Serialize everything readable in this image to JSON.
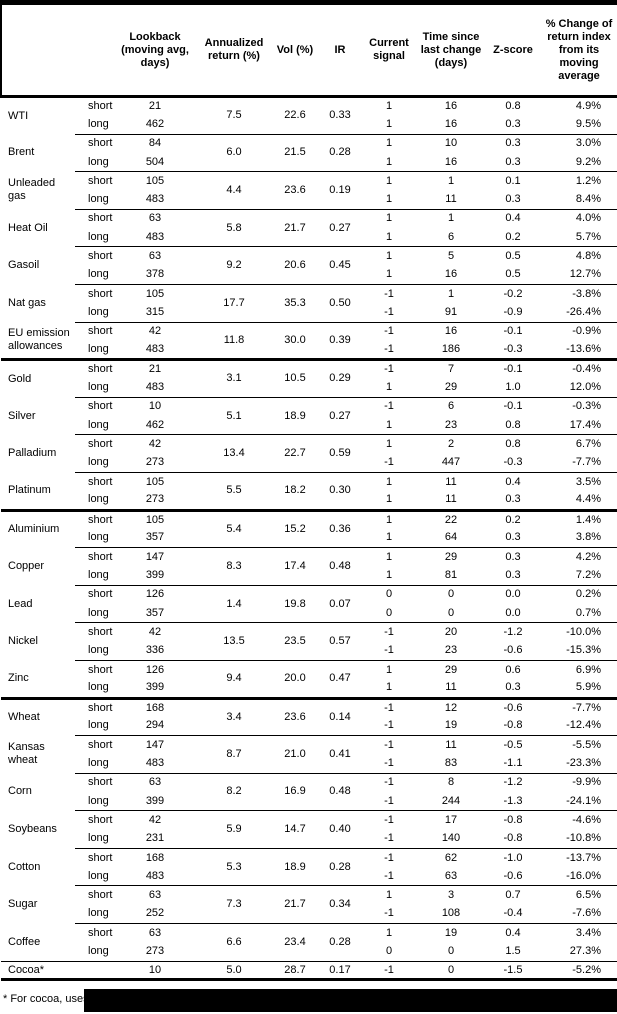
{
  "header": {
    "col_name": "",
    "col_horizon": "",
    "col_lookback": "Lookback (moving avg, days)",
    "col_annualized": "Annualized return (%)",
    "col_vol": "Vol (%)",
    "col_ir": "IR",
    "col_signal": "Current signal",
    "col_time": "Time since last change (days)",
    "col_zscore": "Z-score",
    "col_pct_change": "% Change of return index from its moving average"
  },
  "colors": {
    "border": "#000000",
    "text": "#000000",
    "background": "#ffffff",
    "redaction": "#000000"
  },
  "sections": [
    {
      "commodities": [
        {
          "name": "WTI",
          "annualized": "7.5",
          "vol": "22.6",
          "ir": "0.33",
          "rows": [
            {
              "horizon": "short",
              "lookback": "21",
              "signal": "1",
              "time": "16",
              "z": "0.8",
              "pct": "4.9%"
            },
            {
              "horizon": "long",
              "lookback": "462",
              "signal": "1",
              "time": "16",
              "z": "0.3",
              "pct": "9.5%"
            }
          ]
        },
        {
          "name": "Brent",
          "annualized": "6.0",
          "vol": "21.5",
          "ir": "0.28",
          "rows": [
            {
              "horizon": "short",
              "lookback": "84",
              "signal": "1",
              "time": "10",
              "z": "0.3",
              "pct": "3.0%"
            },
            {
              "horizon": "long",
              "lookback": "504",
              "signal": "1",
              "time": "16",
              "z": "0.3",
              "pct": "9.2%"
            }
          ]
        },
        {
          "name": "Unleaded gas",
          "annualized": "4.4",
          "vol": "23.6",
          "ir": "0.19",
          "rows": [
            {
              "horizon": "short",
              "lookback": "105",
              "signal": "1",
              "time": "1",
              "z": "0.1",
              "pct": "1.2%"
            },
            {
              "horizon": "long",
              "lookback": "483",
              "signal": "1",
              "time": "11",
              "z": "0.3",
              "pct": "8.4%"
            }
          ]
        },
        {
          "name": "Heat Oil",
          "annualized": "5.8",
          "vol": "21.7",
          "ir": "0.27",
          "rows": [
            {
              "horizon": "short",
              "lookback": "63",
              "signal": "1",
              "time": "1",
              "z": "0.4",
              "pct": "4.0%"
            },
            {
              "horizon": "long",
              "lookback": "483",
              "signal": "1",
              "time": "6",
              "z": "0.2",
              "pct": "5.7%"
            }
          ]
        },
        {
          "name": "Gasoil",
          "annualized": "9.2",
          "vol": "20.6",
          "ir": "0.45",
          "rows": [
            {
              "horizon": "short",
              "lookback": "63",
              "signal": "1",
              "time": "5",
              "z": "0.5",
              "pct": "4.8%"
            },
            {
              "horizon": "long",
              "lookback": "378",
              "signal": "1",
              "time": "16",
              "z": "0.5",
              "pct": "12.7%"
            }
          ]
        },
        {
          "name": "Nat gas",
          "annualized": "17.7",
          "vol": "35.3",
          "ir": "0.50",
          "rows": [
            {
              "horizon": "short",
              "lookback": "105",
              "signal": "-1",
              "time": "1",
              "z": "-0.2",
              "pct": "-3.8%"
            },
            {
              "horizon": "long",
              "lookback": "315",
              "signal": "-1",
              "time": "91",
              "z": "-0.9",
              "pct": "-26.4%"
            }
          ]
        },
        {
          "name": "EU emission allowances",
          "annualized": "11.8",
          "vol": "30.0",
          "ir": "0.39",
          "rows": [
            {
              "horizon": "short",
              "lookback": "42",
              "signal": "-1",
              "time": "16",
              "z": "-0.1",
              "pct": "-0.9%"
            },
            {
              "horizon": "long",
              "lookback": "483",
              "signal": "-1",
              "time": "186",
              "z": "-0.3",
              "pct": "-13.6%"
            }
          ]
        }
      ]
    },
    {
      "commodities": [
        {
          "name": "Gold",
          "annualized": "3.1",
          "vol": "10.5",
          "ir": "0.29",
          "rows": [
            {
              "horizon": "short",
              "lookback": "21",
              "signal": "-1",
              "time": "7",
              "z": "-0.1",
              "pct": "-0.4%"
            },
            {
              "horizon": "long",
              "lookback": "483",
              "signal": "1",
              "time": "29",
              "z": "1.0",
              "pct": "12.0%"
            }
          ]
        },
        {
          "name": "Silver",
          "annualized": "5.1",
          "vol": "18.9",
          "ir": "0.27",
          "rows": [
            {
              "horizon": "short",
              "lookback": "10",
              "signal": "-1",
              "time": "6",
              "z": "-0.1",
              "pct": "-0.3%"
            },
            {
              "horizon": "long",
              "lookback": "462",
              "signal": "1",
              "time": "23",
              "z": "0.8",
              "pct": "17.4%"
            }
          ]
        },
        {
          "name": "Palladium",
          "annualized": "13.4",
          "vol": "22.7",
          "ir": "0.59",
          "rows": [
            {
              "horizon": "short",
              "lookback": "42",
              "signal": "1",
              "time": "2",
              "z": "0.8",
              "pct": "6.7%"
            },
            {
              "horizon": "long",
              "lookback": "273",
              "signal": "-1",
              "time": "447",
              "z": "-0.3",
              "pct": "-7.7%"
            }
          ]
        },
        {
          "name": "Platinum",
          "annualized": "5.5",
          "vol": "18.2",
          "ir": "0.30",
          "rows": [
            {
              "horizon": "short",
              "lookback": "105",
              "signal": "1",
              "time": "11",
              "z": "0.4",
              "pct": "3.5%"
            },
            {
              "horizon": "long",
              "lookback": "273",
              "signal": "1",
              "time": "11",
              "z": "0.3",
              "pct": "4.4%"
            }
          ]
        }
      ]
    },
    {
      "commodities": [
        {
          "name": "Aluminium",
          "annualized": "5.4",
          "vol": "15.2",
          "ir": "0.36",
          "rows": [
            {
              "horizon": "short",
              "lookback": "105",
              "signal": "1",
              "time": "22",
              "z": "0.2",
              "pct": "1.4%"
            },
            {
              "horizon": "long",
              "lookback": "357",
              "signal": "1",
              "time": "64",
              "z": "0.3",
              "pct": "3.8%"
            }
          ]
        },
        {
          "name": "Copper",
          "annualized": "8.3",
          "vol": "17.4",
          "ir": "0.48",
          "rows": [
            {
              "horizon": "short",
              "lookback": "147",
              "signal": "1",
              "time": "29",
              "z": "0.3",
              "pct": "4.2%"
            },
            {
              "horizon": "long",
              "lookback": "399",
              "signal": "1",
              "time": "81",
              "z": "0.3",
              "pct": "7.2%"
            }
          ]
        },
        {
          "name": "Lead",
          "annualized": "1.4",
          "vol": "19.8",
          "ir": "0.07",
          "rows": [
            {
              "horizon": "short",
              "lookback": "126",
              "signal": "0",
              "time": "0",
              "z": "0.0",
              "pct": "0.2%"
            },
            {
              "horizon": "long",
              "lookback": "357",
              "signal": "0",
              "time": "0",
              "z": "0.0",
              "pct": "0.7%"
            }
          ]
        },
        {
          "name": "Nickel",
          "annualized": "13.5",
          "vol": "23.5",
          "ir": "0.57",
          "rows": [
            {
              "horizon": "short",
              "lookback": "42",
              "signal": "-1",
              "time": "20",
              "z": "-1.2",
              "pct": "-10.0%"
            },
            {
              "horizon": "long",
              "lookback": "336",
              "signal": "-1",
              "time": "23",
              "z": "-0.6",
              "pct": "-15.3%"
            }
          ]
        },
        {
          "name": "Zinc",
          "annualized": "9.4",
          "vol": "20.0",
          "ir": "0.47",
          "rows": [
            {
              "horizon": "short",
              "lookback": "126",
              "signal": "1",
              "time": "29",
              "z": "0.6",
              "pct": "6.9%"
            },
            {
              "horizon": "long",
              "lookback": "399",
              "signal": "1",
              "time": "11",
              "z": "0.3",
              "pct": "5.9%"
            }
          ]
        }
      ]
    },
    {
      "commodities": [
        {
          "name": "Wheat",
          "annualized": "3.4",
          "vol": "23.6",
          "ir": "0.14",
          "rows": [
            {
              "horizon": "short",
              "lookback": "168",
              "signal": "-1",
              "time": "12",
              "z": "-0.6",
              "pct": "-7.7%"
            },
            {
              "horizon": "long",
              "lookback": "294",
              "signal": "-1",
              "time": "19",
              "z": "-0.8",
              "pct": "-12.4%"
            }
          ]
        },
        {
          "name": "Kansas wheat",
          "annualized": "8.7",
          "vol": "21.0",
          "ir": "0.41",
          "rows": [
            {
              "horizon": "short",
              "lookback": "147",
              "signal": "-1",
              "time": "11",
              "z": "-0.5",
              "pct": "-5.5%"
            },
            {
              "horizon": "long",
              "lookback": "483",
              "signal": "-1",
              "time": "83",
              "z": "-1.1",
              "pct": "-23.3%"
            }
          ]
        },
        {
          "name": "Corn",
          "annualized": "8.2",
          "vol": "16.9",
          "ir": "0.48",
          "rows": [
            {
              "horizon": "short",
              "lookback": "63",
              "signal": "-1",
              "time": "8",
              "z": "-1.2",
              "pct": "-9.9%"
            },
            {
              "horizon": "long",
              "lookback": "399",
              "signal": "-1",
              "time": "244",
              "z": "-1.3",
              "pct": "-24.1%"
            }
          ]
        },
        {
          "name": "Soybeans",
          "annualized": "5.9",
          "vol": "14.7",
          "ir": "0.40",
          "rows": [
            {
              "horizon": "short",
              "lookback": "42",
              "signal": "-1",
              "time": "17",
              "z": "-0.8",
              "pct": "-4.6%"
            },
            {
              "horizon": "long",
              "lookback": "231",
              "signal": "-1",
              "time": "140",
              "z": "-0.8",
              "pct": "-10.8%"
            }
          ]
        },
        {
          "name": "Cotton",
          "annualized": "5.3",
          "vol": "18.9",
          "ir": "0.28",
          "rows": [
            {
              "horizon": "short",
              "lookback": "168",
              "signal": "-1",
              "time": "62",
              "z": "-1.0",
              "pct": "-13.7%"
            },
            {
              "horizon": "long",
              "lookback": "483",
              "signal": "-1",
              "time": "63",
              "z": "-0.6",
              "pct": "-16.0%"
            }
          ]
        },
        {
          "name": "Sugar",
          "annualized": "7.3",
          "vol": "21.7",
          "ir": "0.34",
          "rows": [
            {
              "horizon": "short",
              "lookback": "63",
              "signal": "1",
              "time": "3",
              "z": "0.7",
              "pct": "6.5%"
            },
            {
              "horizon": "long",
              "lookback": "252",
              "signal": "-1",
              "time": "108",
              "z": "-0.4",
              "pct": "-7.6%"
            }
          ]
        },
        {
          "name": "Coffee",
          "annualized": "6.6",
          "vol": "23.4",
          "ir": "0.28",
          "rows": [
            {
              "horizon": "short",
              "lookback": "63",
              "signal": "1",
              "time": "19",
              "z": "0.4",
              "pct": "3.4%"
            },
            {
              "horizon": "long",
              "lookback": "273",
              "signal": "0",
              "time": "0",
              "z": "1.5",
              "pct": "27.3%"
            }
          ]
        },
        {
          "name": "Cocoa*",
          "annualized": "5.0",
          "vol": "28.7",
          "ir": "0.17",
          "rows": [
            {
              "horizon": "",
              "lookback": "10",
              "signal": "-1",
              "time": "0",
              "z": "-1.5",
              "pct": "-5.2%"
            }
          ]
        }
      ]
    }
  ],
  "footnote": {
    "visible_text": "* For cocoa, uses o",
    "redacted": true
  }
}
